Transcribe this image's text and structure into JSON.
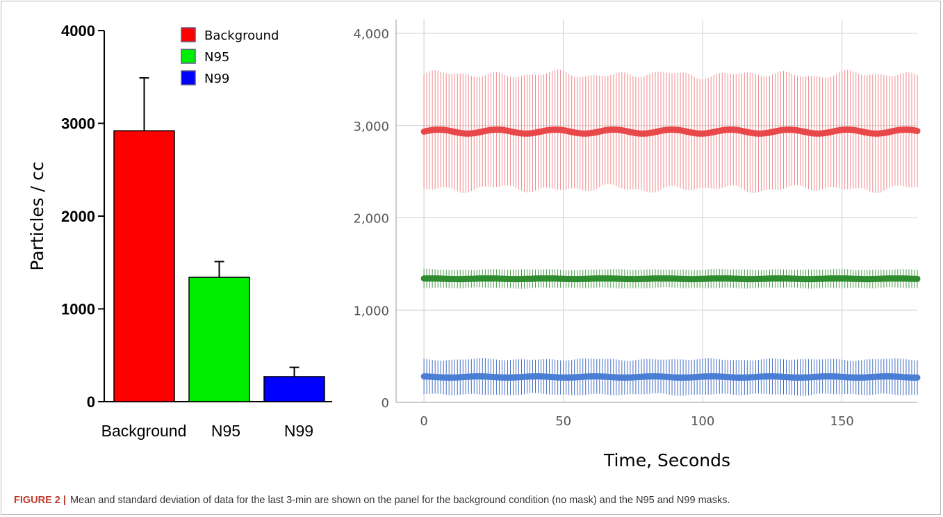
{
  "caption": {
    "label": "FIGURE 2 |",
    "text": "Mean and standard deviation of data for the last 3-min are shown on the panel for the background condition (no mask) and the N95 and N99 masks."
  },
  "chart_data": [
    {
      "type": "bar",
      "ylabel": "Particles / cc",
      "ylim": [
        0,
        4000
      ],
      "yticks": [
        0,
        1000,
        2000,
        3000,
        4000
      ],
      "ytick_labels": [
        "0",
        "1000",
        "2000",
        "3000",
        "4000"
      ],
      "categories": [
        "Background",
        "N95",
        "N99"
      ],
      "values": [
        2920,
        1340,
        270
      ],
      "error": [
        570,
        170,
        100
      ],
      "colors": [
        "#ff0000",
        "#00ee00",
        "#0000ff"
      ],
      "legend": {
        "position": "top-center",
        "entries": [
          {
            "name": "Background",
            "color": "#ff0000"
          },
          {
            "name": "N95",
            "color": "#00ee00"
          },
          {
            "name": "N99",
            "color": "#0000ff"
          }
        ]
      }
    },
    {
      "type": "line",
      "xlabel": "Time, Seconds",
      "xlim": [
        -10,
        177
      ],
      "ylim": [
        0,
        4000
      ],
      "xticks": [
        0,
        50,
        100,
        150
      ],
      "xtick_labels": [
        "0",
        "50",
        "100",
        "150"
      ],
      "yticks": [
        0,
        1000,
        2000,
        3000,
        4000
      ],
      "ytick_labels": [
        "0",
        "1,000",
        "2,000",
        "3,000",
        "4,000"
      ],
      "grid": true,
      "x_range": [
        0,
        177
      ],
      "series": [
        {
          "mean": 2935,
          "sd": 620,
          "color": "#e8484a",
          "bar_color": "#f0898a"
        },
        {
          "mean": 1340,
          "sd": 100,
          "color": "#2e8b2e",
          "bar_color": "#4a9a4a"
        },
        {
          "mean": 275,
          "sd": 190,
          "color": "#4a7dd4",
          "bar_color": "#3f6bc2"
        }
      ]
    }
  ]
}
